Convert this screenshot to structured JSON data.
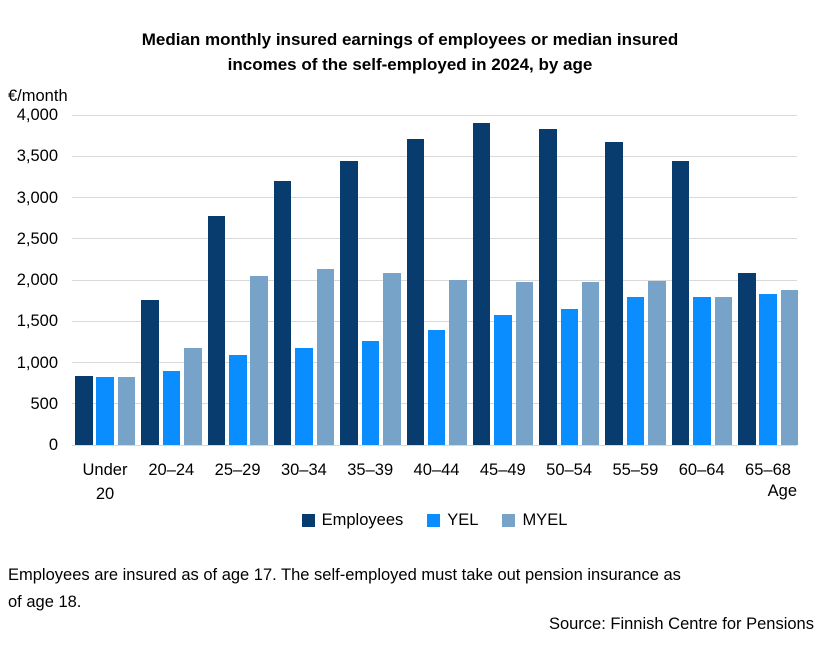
{
  "title_lines": [
    "Median monthly insured earnings of employees or median insured",
    "incomes of the self-employed in 2024, by age"
  ],
  "y_axis": {
    "unit_label": "€/month",
    "ticks": [
      "4,000",
      "3,500",
      "3,000",
      "2,500",
      "2,000",
      "1,500",
      "1,000",
      "500",
      "0"
    ]
  },
  "x_axis": {
    "label": "Age"
  },
  "footnote_lines": [
    "Employees are insured as of age 17. The self-employed must take out pension insurance as",
    "of age 18."
  ],
  "source": "Source: Finnish Centre for Pensions",
  "colors": {
    "gridline": "#D9D9D9",
    "employees": "#083C6F",
    "yel": "#0A8DFF",
    "myel": "#78A3C9"
  },
  "chart_data": {
    "type": "bar",
    "title": "Median monthly insured earnings of employees or median insured incomes of the self-employed in 2024, by age",
    "categories": [
      "Under 20",
      "20–24",
      "25–29",
      "30–34",
      "35–39",
      "40–44",
      "45–49",
      "50–54",
      "55–59",
      "60–64",
      "65–68"
    ],
    "series": [
      {
        "name": "Employees",
        "color": "#083C6F",
        "values": [
          840,
          1760,
          2780,
          3200,
          3440,
          3710,
          3900,
          3830,
          3670,
          3440,
          2080
        ]
      },
      {
        "name": "YEL",
        "color": "#0A8DFF",
        "values": [
          825,
          900,
          1090,
          1170,
          1260,
          1390,
          1570,
          1650,
          1800,
          1800,
          1830
        ]
      },
      {
        "name": "MYEL",
        "color": "#78A3C9",
        "values": [
          820,
          1180,
          2050,
          2130,
          2080,
          2000,
          1980,
          1980,
          1990,
          1800,
          1880
        ]
      }
    ],
    "ylabel": "€/month",
    "xlabel": "Age",
    "ylim": [
      0,
      4000
    ],
    "ytick_step": 500,
    "grid": true,
    "legend_position": "bottom"
  }
}
